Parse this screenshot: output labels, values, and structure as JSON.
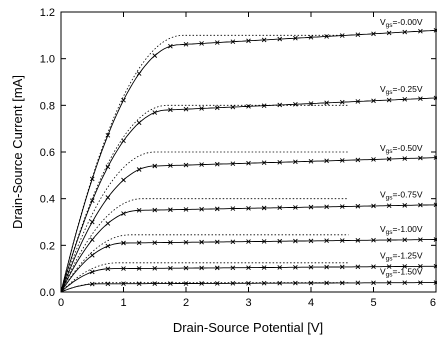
{
  "chart_data": {
    "type": "line",
    "title": "",
    "xlabel": "Drain-Source Potential [V]",
    "ylabel": "Drain-Source Current [mA]",
    "xlim": [
      0,
      6
    ],
    "ylim": [
      0,
      1.2
    ],
    "xticks": [
      "0",
      "1",
      "2",
      "3",
      "4",
      "5",
      "6"
    ],
    "yticks": [
      "0.0",
      "0.2",
      "0.4",
      "0.6",
      "0.8",
      "1.0",
      "1.2"
    ],
    "grid": false,
    "marker_x": [
      0.5,
      0.75,
      1.0,
      1.25,
      1.5,
      1.75,
      2.0,
      2.25,
      2.5,
      2.75,
      3.0,
      3.25,
      3.5,
      3.75,
      4.0,
      4.25,
      4.5,
      4.75,
      5.0,
      5.25,
      5.5,
      5.75,
      6.0
    ],
    "series": [
      {
        "name": "V_gs=-0.00V",
        "label_main": "V",
        "label_sub": "gs",
        "label_rest": "=-0.00V",
        "isat": 1.06,
        "vsat": 1.9,
        "slope": 0.015,
        "model_isat": 1.1,
        "model_vsat": 1.95,
        "model_end": 4.5
      },
      {
        "name": "V_gs=-0.25V",
        "label_main": "V",
        "label_sub": "gs",
        "label_rest": "=-0.25V",
        "isat": 0.78,
        "vsat": 1.7,
        "slope": 0.012,
        "model_isat": 0.8,
        "model_vsat": 1.7,
        "model_end": 4.6
      },
      {
        "name": "V_gs=-0.50V",
        "label_main": "V",
        "label_sub": "gs",
        "label_rest": "=-0.50V",
        "isat": 0.54,
        "vsat": 1.5,
        "slope": 0.008,
        "model_isat": 0.6,
        "model_vsat": 1.5,
        "model_end": 4.6
      },
      {
        "name": "V_gs=-0.75V",
        "label_main": "V",
        "label_sub": "gs",
        "label_rest": "=-0.75V",
        "isat": 0.35,
        "vsat": 1.25,
        "slope": 0.005,
        "model_isat": 0.4,
        "model_vsat": 1.3,
        "model_end": 4.6
      },
      {
        "name": "V_gs=-1.00V",
        "label_main": "V",
        "label_sub": "gs",
        "label_rest": "=-1.00V",
        "isat": 0.21,
        "vsat": 1.0,
        "slope": 0.003,
        "model_isat": 0.245,
        "model_vsat": 1.1,
        "model_end": 4.6
      },
      {
        "name": "V_gs=-1.25V",
        "label_main": "V",
        "label_sub": "gs",
        "label_rest": "=-1.25V",
        "isat": 0.1,
        "vsat": 0.8,
        "slope": 0.002,
        "model_isat": 0.125,
        "model_vsat": 0.9,
        "model_end": 4.6
      },
      {
        "name": "V_gs=-1.50V",
        "label_main": "V",
        "label_sub": "gs",
        "label_rest": "=-1.50V",
        "isat": 0.035,
        "vsat": 0.6,
        "slope": 0.001,
        "model_isat": 0.04,
        "model_vsat": 0.7,
        "model_end": 4.6
      }
    ]
  }
}
